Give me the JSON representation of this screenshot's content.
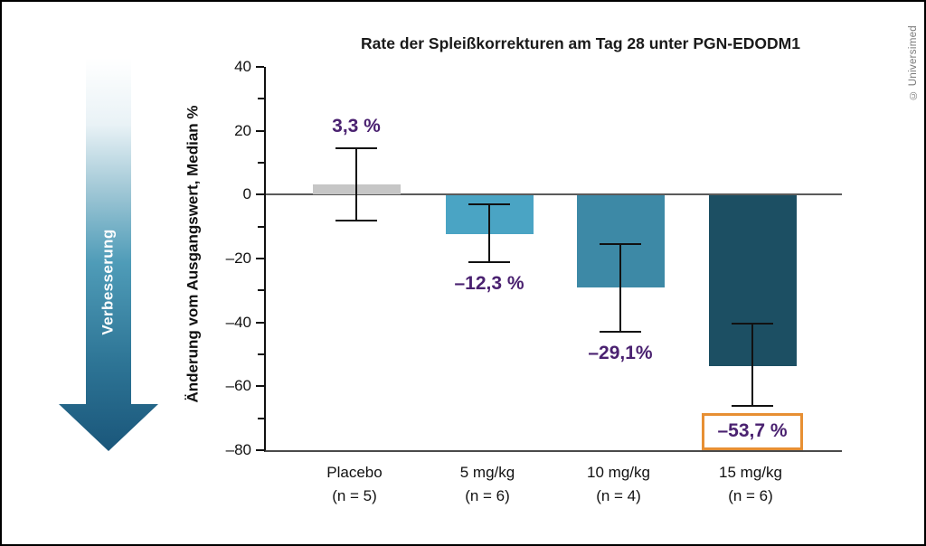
{
  "frame": {
    "copyright": "© Universimed"
  },
  "improvement_arrow": {
    "label": "Verbesserung",
    "gradient_top": "#ffffff",
    "gradient_mid": "#4f9cb8",
    "gradient_bottom": "#1a567a"
  },
  "chart_data": {
    "type": "bar",
    "title": "Rate der Spleißkorrekturen am Tag 28 unter PGN-EDODM1",
    "ylabel": "Änderung vom Ausgangswert, Median %",
    "ylim": [
      -80,
      40
    ],
    "grid": false,
    "value_label_color": "#4a2170",
    "axis_zero_line": true,
    "yticks": [
      {
        "v": 40,
        "label": "40"
      },
      {
        "v": 20,
        "label": "20"
      },
      {
        "v": 0,
        "label": "0"
      },
      {
        "v": -20,
        "label": "–20"
      },
      {
        "v": -40,
        "label": "–40"
      },
      {
        "v": -60,
        "label": "–60"
      },
      {
        "v": -80,
        "label": "–80"
      }
    ],
    "yticks_minor": [
      30,
      10,
      -10,
      -30,
      -50,
      -70
    ],
    "bars": [
      {
        "category": "Placebo",
        "n_label": "(n = 5)",
        "value": 3.3,
        "value_label": "3,3 %",
        "err_hi": 14.5,
        "err_lo": -8,
        "color": "#c6c6c6",
        "highlight": false
      },
      {
        "category": "5 mg/kg",
        "n_label": "(n = 6)",
        "value": -12.3,
        "value_label": "–12,3 %",
        "err_hi": -3,
        "err_lo": -21,
        "color": "#4aa4c4",
        "highlight": false
      },
      {
        "category": "10 mg/kg",
        "n_label": "(n = 4)",
        "value": -29.1,
        "value_label": "–29,1%",
        "err_hi": -15.5,
        "err_lo": -43,
        "color": "#3d89a6",
        "highlight": false
      },
      {
        "category": "15 mg/kg",
        "n_label": "(n = 6)",
        "value": -53.7,
        "value_label": "–53,7 %",
        "err_hi": -40.5,
        "err_lo": -66,
        "color": "#1c4f63",
        "highlight": true
      }
    ],
    "highlight_box_color": "#e78f33"
  }
}
